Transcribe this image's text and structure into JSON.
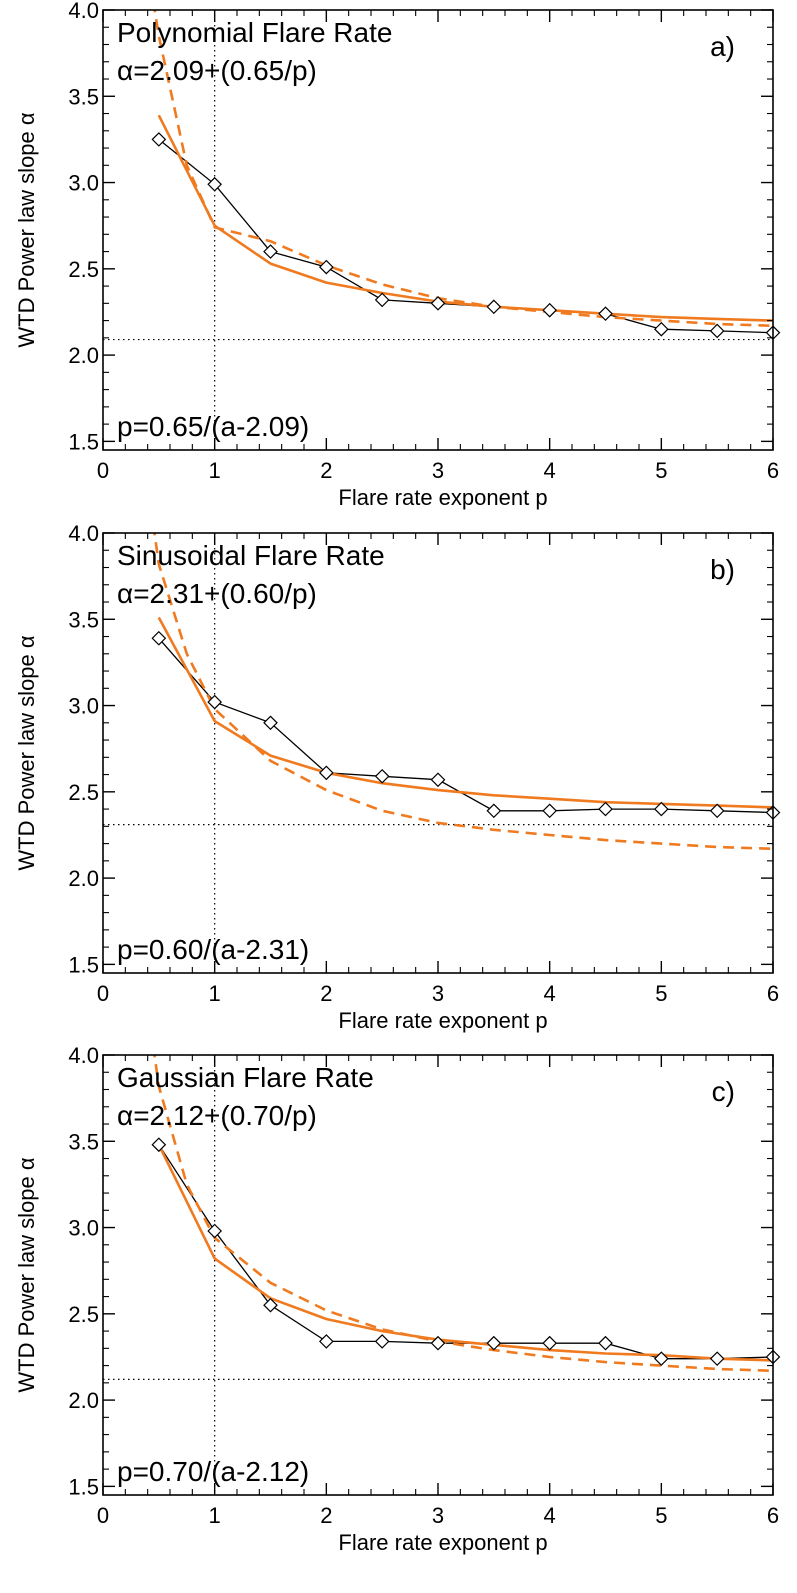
{
  "figure": {
    "colors": {
      "fit": "#f07a1f",
      "data": "#000000",
      "frame": "#000000",
      "reference": "#000000"
    }
  },
  "chart_data": [
    {
      "type": "line",
      "panel_label": "a)",
      "title": "Polynomial Flare Rate",
      "formula_text": "α=2.09+(0.65/p)",
      "inverse_text": "p=0.65/(a-2.09)",
      "xlabel": "Flare rate exponent p",
      "ylabel": "WTD Power law slope  α",
      "xlim": [
        0,
        6
      ],
      "ylim": [
        1.45,
        4.0
      ],
      "x_ticks": [
        "0",
        "1",
        "2",
        "3",
        "4",
        "5",
        "6"
      ],
      "y_ticks": [
        "1.5",
        "2.0",
        "2.5",
        "3.0",
        "3.5",
        "4.0"
      ],
      "reference_lines": {
        "x": 1,
        "y": 2.09
      },
      "series": [
        {
          "style": "diamond-markers",
          "x": [
            0.5,
            1.0,
            1.5,
            2.0,
            2.5,
            3.0,
            3.5,
            4.0,
            4.5,
            5.0,
            5.5,
            6.0
          ],
          "y": [
            3.25,
            2.99,
            2.6,
            2.51,
            2.32,
            2.3,
            2.28,
            2.26,
            2.24,
            2.15,
            2.14,
            2.13
          ]
        },
        {
          "style": "solid-fit",
          "x": [
            0.5,
            1.0,
            1.5,
            2.0,
            2.5,
            3.0,
            3.5,
            4.0,
            4.5,
            5.0,
            5.5,
            6.0
          ],
          "y": [
            3.39,
            2.75,
            2.53,
            2.42,
            2.36,
            2.31,
            2.28,
            2.26,
            2.24,
            2.22,
            2.21,
            2.2
          ]
        },
        {
          "style": "dashed-fit",
          "x": [
            0.45,
            0.5,
            0.75,
            1.0,
            1.5,
            2.0,
            2.5,
            3.0,
            3.5,
            4.0,
            4.5,
            5.0,
            5.5,
            6.0
          ],
          "y": [
            4.05,
            3.85,
            3.1,
            2.74,
            2.66,
            2.52,
            2.41,
            2.33,
            2.28,
            2.25,
            2.22,
            2.2,
            2.18,
            2.17
          ]
        }
      ]
    },
    {
      "type": "line",
      "panel_label": "b)",
      "title": "Sinusoidal Flare Rate",
      "formula_text": "α=2.31+(0.60/p)",
      "inverse_text": "p=0.60/(a-2.31)",
      "xlabel": "Flare rate exponent p",
      "ylabel": "WTD Power law slope  α",
      "xlim": [
        0,
        6
      ],
      "ylim": [
        1.45,
        4.0
      ],
      "x_ticks": [
        "0",
        "1",
        "2",
        "3",
        "4",
        "5",
        "6"
      ],
      "y_ticks": [
        "1.5",
        "2.0",
        "2.5",
        "3.0",
        "3.5",
        "4.0"
      ],
      "reference_lines": {
        "x": 1,
        "y": 2.31
      },
      "series": [
        {
          "style": "diamond-markers",
          "x": [
            0.5,
            1.0,
            1.5,
            2.0,
            2.5,
            3.0,
            3.5,
            4.0,
            4.5,
            5.0,
            5.5,
            6.0
          ],
          "y": [
            3.39,
            3.02,
            2.9,
            2.61,
            2.59,
            2.57,
            2.39,
            2.39,
            2.4,
            2.4,
            2.39,
            2.38
          ]
        },
        {
          "style": "solid-fit",
          "x": [
            0.5,
            1.0,
            1.5,
            2.0,
            2.5,
            3.0,
            3.5,
            4.0,
            4.5,
            5.0,
            5.5,
            6.0
          ],
          "y": [
            3.51,
            2.91,
            2.71,
            2.61,
            2.55,
            2.51,
            2.48,
            2.46,
            2.44,
            2.43,
            2.42,
            2.41
          ]
        },
        {
          "style": "dashed-fit",
          "x": [
            0.45,
            0.5,
            0.75,
            1.0,
            1.5,
            2.0,
            2.5,
            3.0,
            3.5,
            4.0,
            4.5,
            5.0,
            5.5,
            6.0
          ],
          "y": [
            4.05,
            3.82,
            3.3,
            2.98,
            2.68,
            2.51,
            2.39,
            2.32,
            2.28,
            2.25,
            2.22,
            2.2,
            2.18,
            2.17
          ]
        }
      ]
    },
    {
      "type": "line",
      "panel_label": "c)",
      "title": "Gaussian Flare Rate",
      "formula_text": "α=2.12+(0.70/p)",
      "inverse_text": "p=0.70/(a-2.12)",
      "xlabel": "Flare rate exponent p",
      "ylabel": "WTD Power law slope  α",
      "xlim": [
        0,
        6
      ],
      "ylim": [
        1.45,
        4.0
      ],
      "x_ticks": [
        "0",
        "1",
        "2",
        "3",
        "4",
        "5",
        "6"
      ],
      "y_ticks": [
        "1.5",
        "2.0",
        "2.5",
        "3.0",
        "3.5",
        "4.0"
      ],
      "reference_lines": {
        "x": 1,
        "y": 2.12
      },
      "series": [
        {
          "style": "diamond-markers",
          "x": [
            0.5,
            1.0,
            1.5,
            2.0,
            2.5,
            3.0,
            3.5,
            4.0,
            4.5,
            5.0,
            5.5,
            6.0
          ],
          "y": [
            3.48,
            2.98,
            2.55,
            2.34,
            2.34,
            2.33,
            2.33,
            2.33,
            2.33,
            2.24,
            2.24,
            2.25
          ]
        },
        {
          "style": "solid-fit",
          "x": [
            0.5,
            1.0,
            1.5,
            2.0,
            2.5,
            3.0,
            3.5,
            4.0,
            4.5,
            5.0,
            5.5,
            6.0
          ],
          "y": [
            3.48,
            2.82,
            2.59,
            2.47,
            2.4,
            2.35,
            2.32,
            2.29,
            2.27,
            2.26,
            2.24,
            2.23
          ]
        },
        {
          "style": "dashed-fit",
          "x": [
            0.45,
            0.5,
            0.75,
            1.0,
            1.5,
            2.0,
            2.5,
            3.0,
            3.5,
            4.0,
            4.5,
            5.0,
            5.5,
            6.0
          ],
          "y": [
            4.05,
            3.82,
            3.25,
            2.94,
            2.68,
            2.52,
            2.41,
            2.34,
            2.29,
            2.25,
            2.22,
            2.2,
            2.18,
            2.17
          ]
        }
      ]
    }
  ]
}
